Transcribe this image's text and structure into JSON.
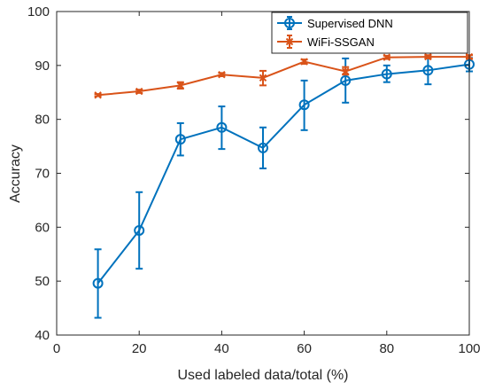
{
  "chart_data": {
    "type": "line",
    "xlabel": "Used labeled data/total (%)",
    "ylabel": "Accuracy",
    "xlim": [
      0,
      100
    ],
    "ylim": [
      40,
      100
    ],
    "xticks": [
      0,
      20,
      40,
      60,
      80,
      100
    ],
    "yticks": [
      40,
      50,
      60,
      70,
      80,
      90,
      100
    ],
    "grid": false,
    "legend": "top-right",
    "series": [
      {
        "name": "Supervised DNN",
        "color": "#0072BD",
        "marker": "circle",
        "x": [
          10,
          20,
          30,
          40,
          50,
          60,
          70,
          80,
          90,
          100
        ],
        "y": [
          49.6,
          59.4,
          76.3,
          78.5,
          74.7,
          82.7,
          87.2,
          88.4,
          89.1,
          90.2
        ],
        "err_low": [
          43.2,
          52.3,
          73.3,
          74.5,
          70.9,
          78.0,
          83.1,
          86.9,
          86.5,
          88.9
        ],
        "err_high": [
          55.9,
          66.5,
          79.3,
          82.4,
          78.5,
          87.2,
          91.3,
          90.0,
          91.6,
          91.4
        ]
      },
      {
        "name": "WiFi-SSGAN",
        "color": "#D95319",
        "marker": "x",
        "x": [
          10,
          20,
          30,
          40,
          50,
          60,
          70,
          80,
          90,
          100
        ],
        "y": [
          84.5,
          85.2,
          86.3,
          88.3,
          87.7,
          90.7,
          88.9,
          91.5,
          91.6,
          91.6
        ],
        "err_low": [
          84.3,
          84.9,
          85.7,
          88.0,
          86.3,
          90.3,
          88.3,
          91.2,
          91.3,
          91.3
        ],
        "err_high": [
          84.7,
          85.5,
          86.9,
          88.6,
          89.0,
          91.1,
          89.7,
          91.8,
          91.9,
          91.9
        ]
      }
    ]
  }
}
